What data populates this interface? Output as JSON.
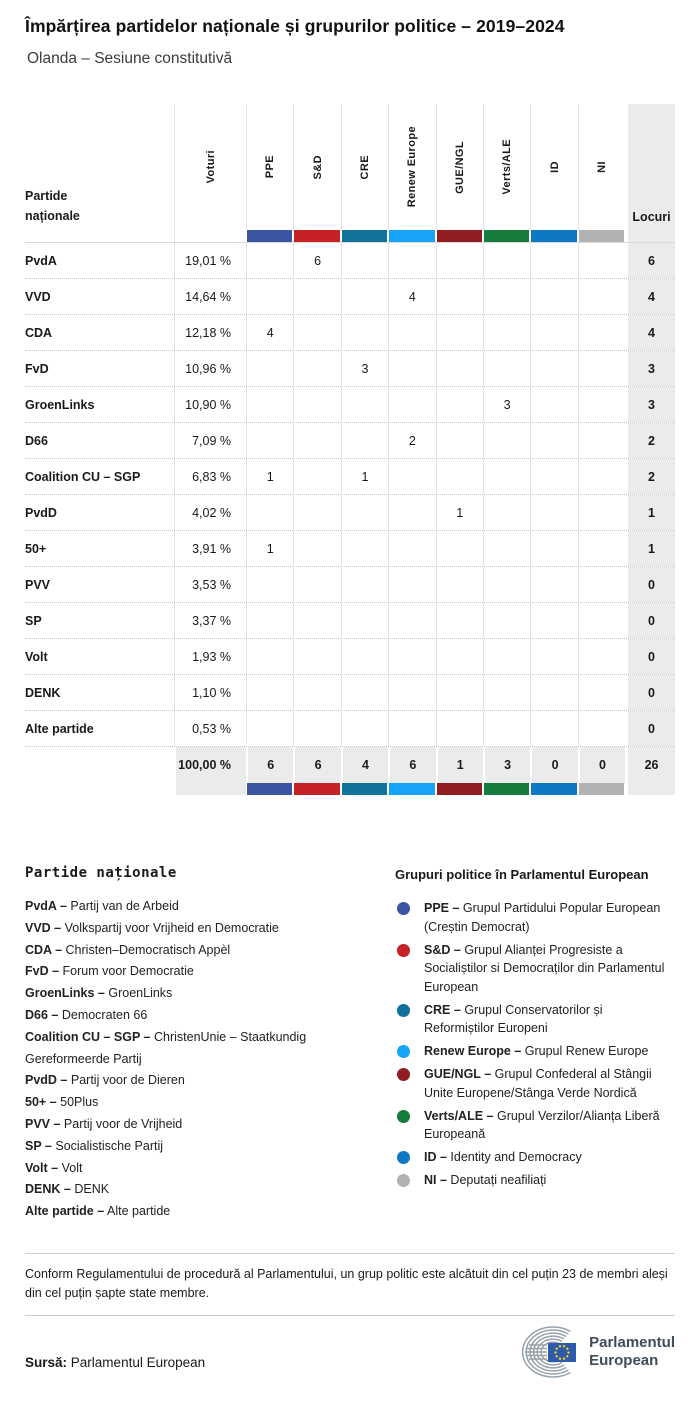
{
  "header": {
    "title": "Împărțirea partidelor naționale și grupurilor politice – 2019–2024",
    "subtitle": "Olanda – Sesiune constitutivă"
  },
  "table": {
    "party_col_header": "Partide naționale",
    "votes_col_header": "Voturi",
    "seats_col_header": "Locuri",
    "groups": [
      {
        "label": "PPE",
        "color": "#3B55A0"
      },
      {
        "label": "S&D",
        "color": "#C52127"
      },
      {
        "label": "CRE",
        "color": "#11739C"
      },
      {
        "label": "Renew Europe",
        "color": "#17A3F7"
      },
      {
        "label": "GUE/NGL",
        "color": "#8F1D21"
      },
      {
        "label": "Verts/ALE",
        "color": "#167B3C"
      },
      {
        "label": "ID",
        "color": "#0E78C4"
      },
      {
        "label": "NI",
        "color": "#B2B2B2"
      }
    ]
  },
  "chart_data": {
    "type": "table",
    "title": "Împărțirea partidelor naționale și grupurilor politice – 2019–2024",
    "subtitle": "Olanda – Sesiune constitutivă",
    "columns": [
      "Partide naționale",
      "Voturi",
      "PPE",
      "S&D",
      "CRE",
      "Renew Europe",
      "GUE/NGL",
      "Verts/ALE",
      "ID",
      "NI",
      "Locuri"
    ],
    "rows": [
      [
        "PvdA",
        "19,01 %",
        null,
        6,
        null,
        null,
        null,
        null,
        null,
        null,
        6
      ],
      [
        "VVD",
        "14,64 %",
        null,
        null,
        null,
        4,
        null,
        null,
        null,
        null,
        4
      ],
      [
        "CDA",
        "12,18 %",
        4,
        null,
        null,
        null,
        null,
        null,
        null,
        null,
        4
      ],
      [
        "FvD",
        "10,96 %",
        null,
        null,
        3,
        null,
        null,
        null,
        null,
        null,
        3
      ],
      [
        "GroenLinks",
        "10,90 %",
        null,
        null,
        null,
        null,
        null,
        3,
        null,
        null,
        3
      ],
      [
        "D66",
        "7,09 %",
        null,
        null,
        null,
        2,
        null,
        null,
        null,
        null,
        2
      ],
      [
        "Coalition CU – SGP",
        "6,83 %",
        1,
        null,
        1,
        null,
        null,
        null,
        null,
        null,
        2
      ],
      [
        "PvdD",
        "4,02 %",
        null,
        null,
        null,
        null,
        1,
        null,
        null,
        null,
        1
      ],
      [
        "50+",
        "3,91 %",
        1,
        null,
        null,
        null,
        null,
        null,
        null,
        null,
        1
      ],
      [
        "PVV",
        "3,53 %",
        null,
        null,
        null,
        null,
        null,
        null,
        null,
        null,
        0
      ],
      [
        "SP",
        "3,37 %",
        null,
        null,
        null,
        null,
        null,
        null,
        null,
        null,
        0
      ],
      [
        "Volt",
        "1,93 %",
        null,
        null,
        null,
        null,
        null,
        null,
        null,
        null,
        0
      ],
      [
        "DENK",
        "1,10 %",
        null,
        null,
        null,
        null,
        null,
        null,
        null,
        null,
        0
      ],
      [
        "Alte partide",
        "0,53 %",
        null,
        null,
        null,
        null,
        null,
        null,
        null,
        null,
        0
      ]
    ],
    "total_row": [
      "",
      "100,00 %",
      6,
      6,
      4,
      6,
      1,
      3,
      0,
      0,
      26
    ]
  },
  "party_legend": {
    "heading": "Partide naționale",
    "items": [
      {
        "label": "PvdA –",
        "text": "Partij van de Arbeid"
      },
      {
        "label": "VVD –",
        "text": "Volkspartij voor Vrijheid en Democratie"
      },
      {
        "label": "CDA –",
        "text": "Christen–Democratisch Appèl"
      },
      {
        "label": "FvD –",
        "text": "Forum voor Democratie"
      },
      {
        "label": "GroenLinks –",
        "text": "GroenLinks"
      },
      {
        "label": "D66 –",
        "text": "Democraten 66"
      },
      {
        "label": "Coalition CU – SGP –",
        "text": "ChristenUnie – Staatkundig Gereformeerde Partij"
      },
      {
        "label": "PvdD –",
        "text": "Partij voor de Dieren"
      },
      {
        "label": "50+ –",
        "text": "50Plus"
      },
      {
        "label": "PVV –",
        "text": "Partij voor de Vrijheid"
      },
      {
        "label": "SP –",
        "text": "Socialistische Partij"
      },
      {
        "label": "Volt –",
        "text": "Volt"
      },
      {
        "label": "DENK –",
        "text": "DENK"
      },
      {
        "label": "Alte partide –",
        "text": "Alte partide"
      }
    ]
  },
  "group_legend": {
    "heading": "Grupuri politice în Parlamentul European",
    "items": [
      {
        "label": "PPE –",
        "text": "Grupul Partidului Popular European (Creștin Democrat)",
        "color": "#3B55A0"
      },
      {
        "label": "S&D –",
        "text": "Grupul Alianței Progresiste a Socialiștilor si Democraților din Parlamentul European",
        "color": "#C52127"
      },
      {
        "label": "CRE –",
        "text": "Grupul Conservatorilor și Reformiștilor Europeni",
        "color": "#11739C"
      },
      {
        "label": "Renew Europe –",
        "text": "Grupul Renew Europe",
        "color": "#17A3F7"
      },
      {
        "label": "GUE/NGL –",
        "text": "Grupul Confederal al Stângii Unite Europene/Stânga Verde Nordică",
        "color": "#8F1D21"
      },
      {
        "label": "Verts/ALE –",
        "text": "Grupul Verzilor/Alianța Liberă Europeană",
        "color": "#167B3C"
      },
      {
        "label": "ID –",
        "text": "Identity and Democracy",
        "color": "#0E78C4"
      },
      {
        "label": "NI –",
        "text": "Deputați neafiliați",
        "color": "#B2B2B2"
      }
    ]
  },
  "footer": {
    "note": "Conform Regulamentului de procedură al Parlamentului, un grup politic este alcătuit din cel puțin 23 de membri aleși din cel puțin șapte state membre.",
    "source_label": "Sursă:",
    "source_text": "Parlamentul European",
    "logo_line1": "Parlamentul",
    "logo_line2": "European"
  }
}
